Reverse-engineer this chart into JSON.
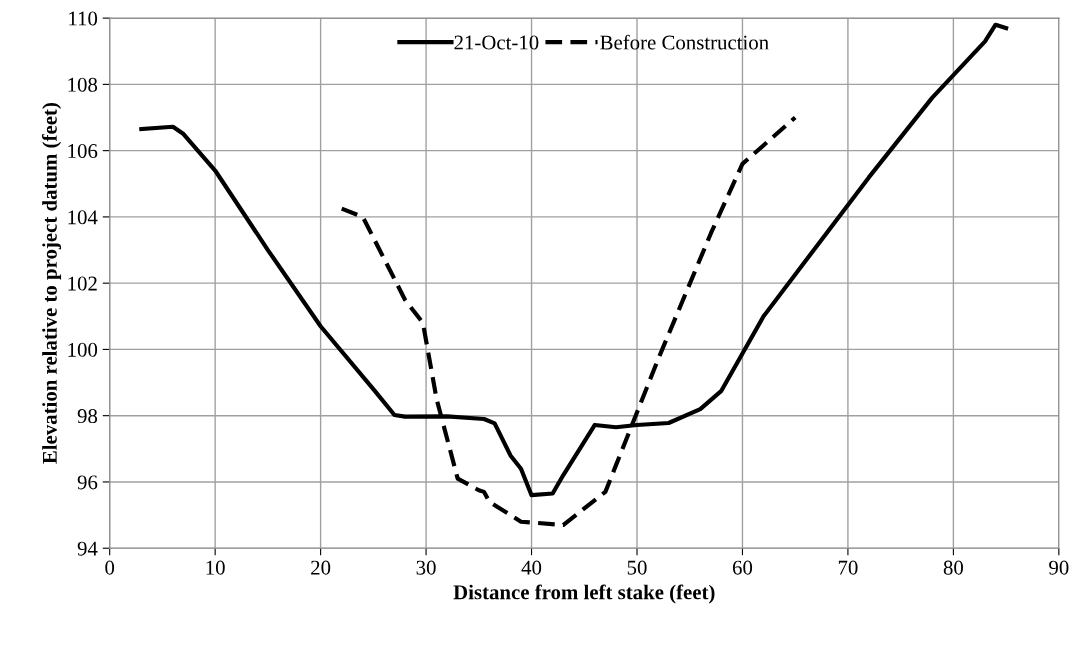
{
  "chart_data": {
    "type": "line",
    "xlabel": "Distance from left stake (feet)",
    "ylabel": "Elevation relative to project datum (feet)",
    "xlim": [
      0,
      90
    ],
    "ylim": [
      94,
      110
    ],
    "xticks": [
      0,
      10,
      20,
      30,
      40,
      50,
      60,
      70,
      80,
      90
    ],
    "yticks": [
      94,
      96,
      98,
      100,
      102,
      104,
      106,
      108,
      110
    ],
    "grid": true,
    "legend": "top",
    "marker": "none",
    "series": [
      {
        "name": "21-Oct-10",
        "color": "#000000",
        "line_style": "solid",
        "x": [
          3,
          6,
          7,
          10,
          15,
          20,
          25,
          27,
          28,
          32,
          35.5,
          36.5,
          38,
          39,
          40,
          42,
          43,
          46,
          48,
          50,
          53,
          56,
          58,
          62,
          67,
          72,
          78,
          83,
          84,
          85
        ],
        "values": [
          106.65,
          106.72,
          106.5,
          105.4,
          103.0,
          100.7,
          98.8,
          98.02,
          97.97,
          97.98,
          97.9,
          97.77,
          96.8,
          96.4,
          95.6,
          95.65,
          96.2,
          97.72,
          97.65,
          97.72,
          97.78,
          98.2,
          98.75,
          101.0,
          103.1,
          105.2,
          107.6,
          109.3,
          109.8,
          109.7
        ]
      },
      {
        "name": "Before Construction",
        "color": "#000000",
        "line_style": "dashed",
        "x": [
          22,
          24,
          28,
          29.7,
          31,
          33,
          35,
          35.5,
          36,
          39,
          43,
          47,
          48,
          52,
          57,
          60,
          65
        ],
        "values": [
          104.25,
          104.0,
          101.5,
          100.8,
          98.5,
          96.1,
          95.75,
          95.7,
          95.4,
          94.8,
          94.7,
          95.7,
          96.5,
          99.7,
          103.5,
          105.6,
          107.0
        ]
      }
    ]
  }
}
